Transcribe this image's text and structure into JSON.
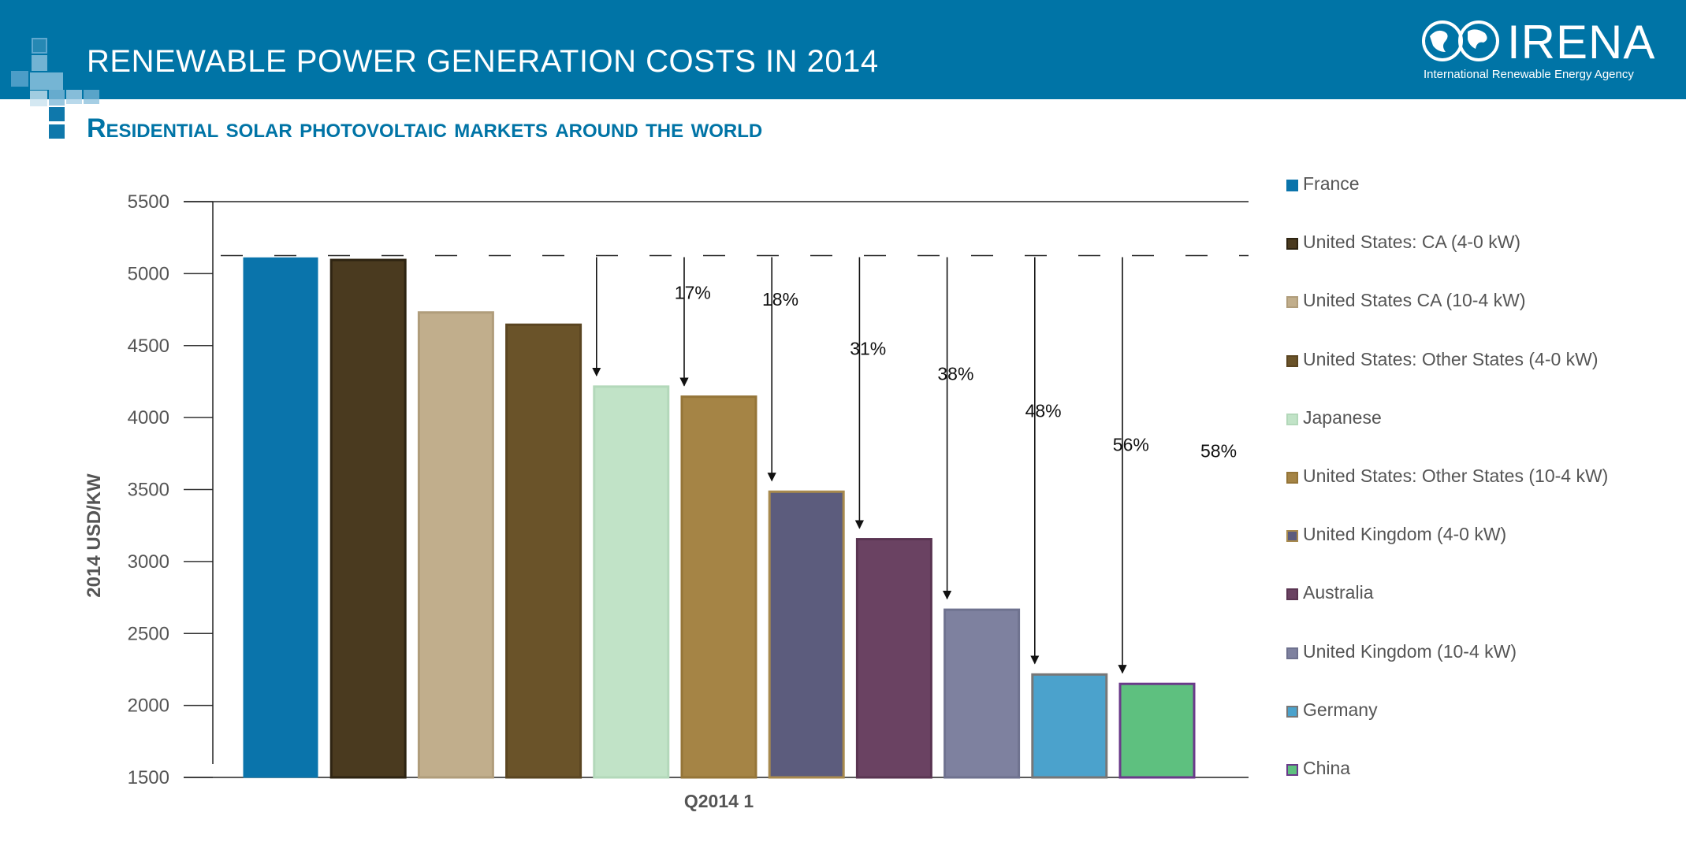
{
  "header": {
    "title": "RENEWABLE POWER GENERATION COSTS IN 2014",
    "subtitle": "Residential solar photovoltaic markets around the world"
  },
  "logo": {
    "name": "IRENA",
    "tagline": "International Renewable Energy Agency"
  },
  "colors": {
    "banner": "#0074a6",
    "subtitle": "#0074a6"
  },
  "chart_data": {
    "type": "bar",
    "title": "Residential solar photovoltaic markets around the world",
    "xlabel": "Q2014 1",
    "ylabel": "2014 USD/KW",
    "ylim": [
      1500,
      5500
    ],
    "yticks": [
      5500,
      5000,
      4500,
      4000,
      3500,
      3000,
      2500,
      2000,
      1500
    ],
    "grid": false,
    "legend_position": "right",
    "reference_line": 5125,
    "series": [
      {
        "name": "France",
        "value": 5110,
        "color": "#0a74ab",
        "border": "#0a74ab"
      },
      {
        "name": "United States: CA (4-0 kW)",
        "value": 5095,
        "color": "#4a3a1f",
        "border": "#2e2412"
      },
      {
        "name": "United States CA (10-4 kW)",
        "value": 4730,
        "color": "#c1ae8c",
        "border": "#b09d7b"
      },
      {
        "name": "United States: Other States (4-0 kW)",
        "value": 4645,
        "color": "#6a5329",
        "border": "#5a4521"
      },
      {
        "name": "Japanese",
        "value": 4215,
        "color": "#c1e3c7",
        "border": "#b3d8ba"
      },
      {
        "name": "United States: Other States (10-4 kW)",
        "value": 4145,
        "color": "#a58445",
        "border": "#957538"
      },
      {
        "name": "United Kingdom (4-0 kW)",
        "value": 3485,
        "color": "#5c5c7d",
        "border": "#a88a4e"
      },
      {
        "name": "Australia",
        "value": 3155,
        "color": "#6a4262",
        "border": "#5a3552"
      },
      {
        "name": "United Kingdom (10-4 kW)",
        "value": 2665,
        "color": "#7e819f",
        "border": "#6f728f"
      },
      {
        "name": "Germany",
        "value": 2215,
        "color": "#4ba2cc",
        "border": "#777777"
      },
      {
        "name": "China",
        "value": 2150,
        "color": "#5ec07f",
        "border": "#6a3a8a"
      }
    ],
    "reductions": [
      {
        "bar": "Japanese",
        "label": "17%"
      },
      {
        "bar": "United States: Other States (10-4 kW)",
        "label": "18%"
      },
      {
        "bar": "United Kingdom (4-0 kW)",
        "label": "31%"
      },
      {
        "bar": "Australia",
        "label": "38%"
      },
      {
        "bar": "United Kingdom (10-4 kW)",
        "label": "48%"
      },
      {
        "bar": "Germany",
        "label": "56%"
      },
      {
        "bar": "China",
        "label": "58%"
      }
    ]
  }
}
